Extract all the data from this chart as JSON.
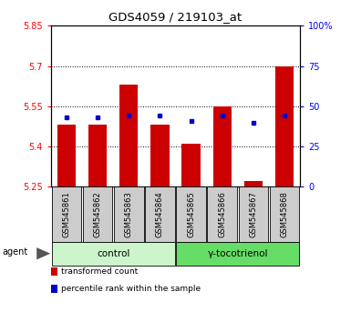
{
  "title": "GDS4059 / 219103_at",
  "samples": [
    "GSM545861",
    "GSM545862",
    "GSM545863",
    "GSM545864",
    "GSM545865",
    "GSM545866",
    "GSM545867",
    "GSM545868"
  ],
  "red_values": [
    5.48,
    5.48,
    5.63,
    5.48,
    5.41,
    5.55,
    5.27,
    5.7
  ],
  "blue_values": [
    5.51,
    5.51,
    5.515,
    5.515,
    5.495,
    5.515,
    5.49,
    5.515
  ],
  "red_base": 5.25,
  "ylim_left": [
    5.25,
    5.85
  ],
  "ylim_right": [
    0,
    100
  ],
  "yticks_left": [
    5.25,
    5.4,
    5.55,
    5.7,
    5.85
  ],
  "yticks_right": [
    0,
    25,
    50,
    75,
    100
  ],
  "ytick_labels_right": [
    "0",
    "25",
    "50",
    "75",
    "100%"
  ],
  "groups": [
    {
      "label": "control",
      "indices": [
        0,
        1,
        2,
        3
      ],
      "color": "#ccf5cc"
    },
    {
      "label": "γ-tocotrienol",
      "indices": [
        4,
        5,
        6,
        7
      ],
      "color": "#66dd66"
    }
  ],
  "agent_label": "agent",
  "bar_color": "#cc0000",
  "dot_color": "#0000cc",
  "bar_width": 0.6,
  "legend_items": [
    {
      "color": "#cc0000",
      "label": "transformed count"
    },
    {
      "color": "#0000cc",
      "label": "percentile rank within the sample"
    }
  ],
  "sample_bg": "#cccccc"
}
